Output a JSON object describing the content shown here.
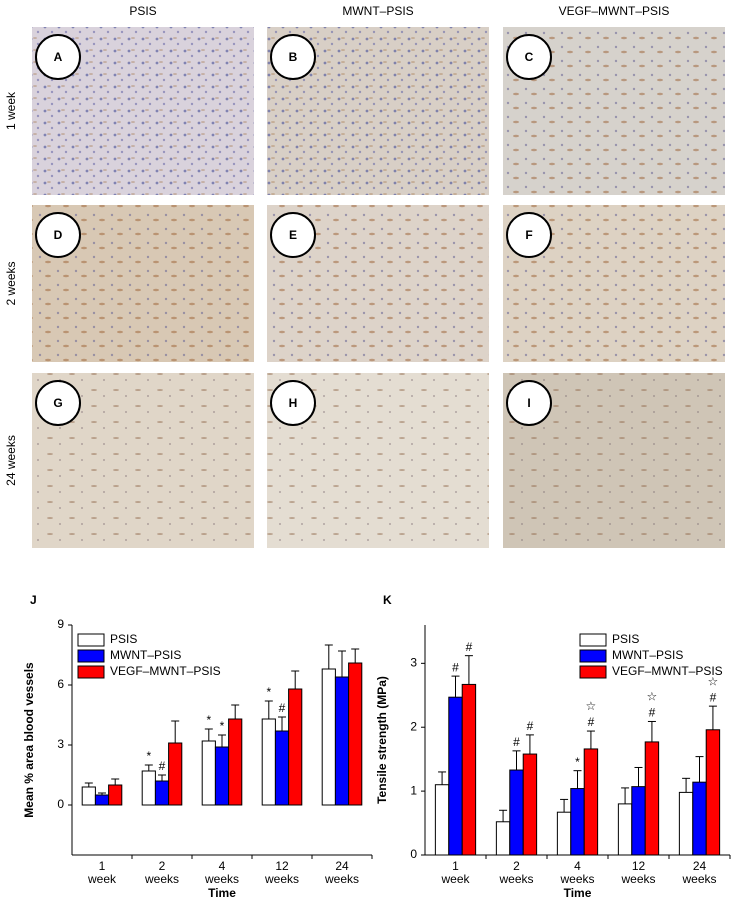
{
  "panels": {
    "columns": [
      "PSIS",
      "MWNT–PSIS",
      "VEGF–MWNT–PSIS"
    ],
    "rows": [
      "1 week",
      "2 weeks",
      "24 weeks"
    ],
    "labels": [
      "A",
      "B",
      "C",
      "D",
      "E",
      "F",
      "G",
      "H",
      "I"
    ]
  },
  "chart_data": [
    {
      "type": "bar",
      "label": "J",
      "ylabel": "Mean % area blood vessels",
      "xlabel": "Time",
      "categories": [
        "1 week",
        "2 weeks",
        "4 weeks",
        "12 weeks",
        "24 weeks"
      ],
      "ylim": [
        -2.5,
        9
      ],
      "yticks": [
        0,
        3,
        6,
        9
      ],
      "legend": "upper left",
      "series": [
        {
          "name": "PSIS",
          "color": "#ffffff",
          "values": [
            0.9,
            1.7,
            3.2,
            4.3,
            6.8
          ],
          "errors": [
            0.2,
            0.3,
            0.6,
            0.9,
            1.2
          ],
          "marks": [
            null,
            [
              "*"
            ],
            [
              "*"
            ],
            [
              "*"
            ],
            null
          ]
        },
        {
          "name": "MWNT–PSIS",
          "color": "#0000ff",
          "values": [
            0.5,
            1.2,
            2.9,
            3.7,
            6.4
          ],
          "errors": [
            0.1,
            0.3,
            0.6,
            0.7,
            1.3
          ],
          "marks": [
            null,
            [
              "#"
            ],
            [
              "*"
            ],
            [
              "#"
            ],
            null
          ]
        },
        {
          "name": "VEGF–MWNT–PSIS",
          "color": "#ff0000",
          "values": [
            1.0,
            3.1,
            4.3,
            5.8,
            7.1
          ],
          "errors": [
            0.3,
            1.1,
            0.7,
            0.9,
            0.7
          ],
          "marks": [
            null,
            null,
            null,
            null,
            null
          ]
        }
      ]
    },
    {
      "type": "bar",
      "label": "K",
      "ylabel": "Tensile strength (MPa)",
      "xlabel": "Time",
      "categories": [
        "1 week",
        "2 weeks",
        "4 weeks",
        "12 weeks",
        "24 weeks"
      ],
      "ylim": [
        0,
        3.6
      ],
      "yticks": [
        0,
        1,
        2,
        3
      ],
      "legend": "upper right",
      "series": [
        {
          "name": "PSIS",
          "color": "#ffffff",
          "values": [
            1.1,
            0.52,
            0.67,
            0.8,
            0.98
          ],
          "errors": [
            0.2,
            0.18,
            0.2,
            0.25,
            0.22
          ],
          "marks": [
            null,
            null,
            null,
            null,
            null
          ]
        },
        {
          "name": "MWNT–PSIS",
          "color": "#0000ff",
          "values": [
            2.47,
            1.33,
            1.04,
            1.07,
            1.14
          ],
          "errors": [
            0.33,
            0.3,
            0.28,
            0.3,
            0.4
          ],
          "marks": [
            [
              "#"
            ],
            [
              "#"
            ],
            [
              "*"
            ],
            null,
            null
          ]
        },
        {
          "name": "VEGF–MWNT–PSIS",
          "color": "#ff0000",
          "values": [
            2.67,
            1.58,
            1.66,
            1.77,
            1.96
          ],
          "errors": [
            0.45,
            0.3,
            0.28,
            0.32,
            0.37
          ],
          "marks": [
            [
              "#"
            ],
            [
              "#"
            ],
            [
              "☆",
              "#"
            ],
            [
              "☆",
              "#"
            ],
            [
              "☆",
              "#"
            ]
          ]
        }
      ]
    }
  ]
}
